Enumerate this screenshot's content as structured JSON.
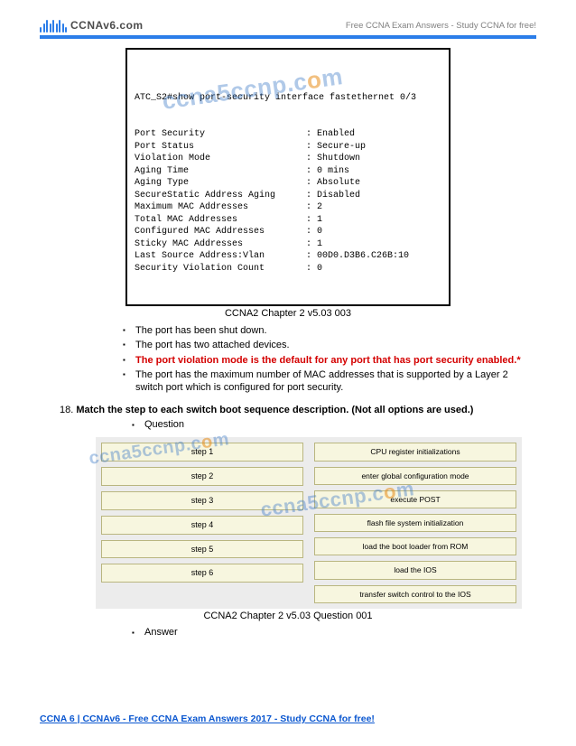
{
  "header": {
    "brand": "CCNAv6.com",
    "right": "Free CCNA Exam Answers - Study CCNA for free!"
  },
  "terminal": {
    "cmd": "ATC_S2#show port-security interface fastethernet 0/3",
    "rows": [
      {
        "label": "Port Security",
        "val": "Enabled"
      },
      {
        "label": "Port Status",
        "val": "Secure-up"
      },
      {
        "label": "Violation Mode",
        "val": "Shutdown"
      },
      {
        "label": "Aging Time",
        "val": "0 mins"
      },
      {
        "label": "Aging Type",
        "val": "Absolute"
      },
      {
        "label": "SecureStatic Address Aging",
        "val": "Disabled"
      },
      {
        "label": "Maximum MAC Addresses",
        "val": "2"
      },
      {
        "label": "Total MAC Addresses",
        "val": "1"
      },
      {
        "label": "Configured MAC Addresses",
        "val": "0"
      },
      {
        "label": "Sticky MAC Addresses",
        "val": "1"
      },
      {
        "label": "Last Source Address:Vlan",
        "val": "00D0.D3B6.C26B:10"
      },
      {
        "label": "Security Violation Count",
        "val": "0"
      }
    ],
    "caption": "CCNA2 Chapter 2 v5.03 003"
  },
  "answers": {
    "items": [
      "The port has been shut down.",
      "The port has two attached devices.",
      "The port violation mode is the default for any port that has port security enabled.*",
      "The port has the maximum number of MAC addresses that is supported by a Layer 2 switch port which is configured for port security."
    ],
    "correct_index": 2
  },
  "q18": {
    "num": "18.",
    "text": "Match the step to each switch boot sequence description. (Not all options are used.)",
    "sub_question": "Question",
    "sub_answer": "Answer",
    "steps": [
      "step 1",
      "step 2",
      "step 3",
      "step 4",
      "step 5",
      "step 6"
    ],
    "options": [
      "CPU register initializations",
      "enter global configuration mode",
      "execute POST",
      "flash file system initialization",
      "load the boot loader from ROM",
      "load the IOS",
      "transfer switch control to the IOS"
    ],
    "caption": "CCNA2 Chapter 2 v5.03 Question 001"
  },
  "footer": {
    "text": "CCNA 6 | CCNAv6 - Free CCNA Exam Answers 2017 - Study CCNA for free!"
  },
  "watermark": {
    "pre": "ccna5ccnp.c",
    "o": "o",
    "post": "m"
  },
  "style": {
    "accent": "#2b7de9",
    "red": "#d40000",
    "box_bg": "#f7f6df",
    "box_border": "#b9b680",
    "panel_bg": "#ececec",
    "link": "#0b57d0"
  }
}
